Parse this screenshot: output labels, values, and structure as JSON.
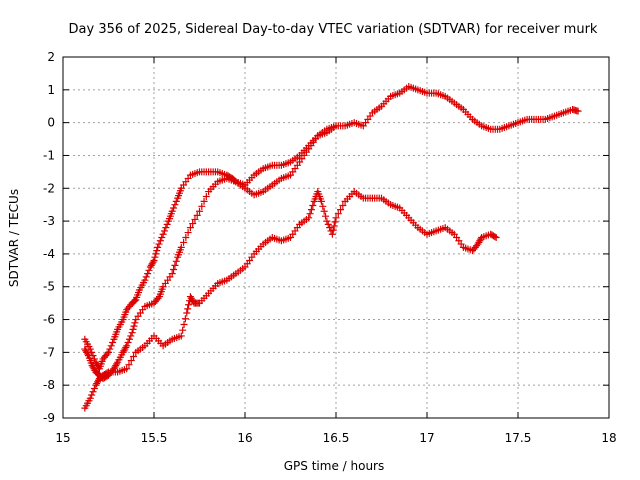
{
  "chart_data": {
    "type": "scatter",
    "title": "Day 356 of 2025, Sidereal Day-to-day VTEC variation (SDTVAR) for receiver murk",
    "xlabel": "GPS time / hours",
    "ylabel": "SDTVAR / TECUs",
    "xlim": [
      15,
      18
    ],
    "ylim": [
      -9,
      2
    ],
    "xticks": [
      "15",
      "15.5",
      "16",
      "16.5",
      "17",
      "17.5",
      "18"
    ],
    "yticks": [
      "2",
      "1",
      "0",
      "-1",
      "-2",
      "-3",
      "-4",
      "-5",
      "-6",
      "-7",
      "-8",
      "-9"
    ],
    "grid": true,
    "marker": "plus",
    "color": "#dd0000",
    "series": [
      {
        "x": [
          15.12,
          15.15,
          15.18,
          15.2,
          15.22,
          15.25,
          15.28,
          15.3,
          15.33,
          15.35,
          15.38,
          15.4,
          15.42,
          15.45,
          15.48,
          15.5,
          15.52,
          15.55,
          15.58,
          15.6,
          15.63,
          15.65,
          15.7,
          15.75,
          15.8,
          15.85,
          15.9,
          15.93,
          15.95,
          16.0,
          16.05,
          16.1,
          16.15,
          16.2,
          16.25,
          16.3,
          16.35,
          16.4,
          16.45,
          16.5,
          16.55,
          16.6,
          16.65,
          16.7,
          16.75,
          16.8,
          16.85,
          16.9,
          16.95,
          17.0,
          17.05,
          17.1,
          17.15,
          17.2,
          17.25,
          17.3,
          17.35,
          17.4,
          17.45,
          17.5,
          17.55,
          17.6,
          17.65,
          17.7,
          17.75,
          17.8,
          17.83
        ],
        "y": [
          -6.6,
          -6.9,
          -7.3,
          -7.5,
          -7.2,
          -7.0,
          -6.6,
          -6.3,
          -6.0,
          -5.7,
          -5.5,
          -5.4,
          -5.1,
          -4.8,
          -4.4,
          -4.2,
          -3.8,
          -3.4,
          -3.0,
          -2.7,
          -2.3,
          -2.0,
          -1.6,
          -1.5,
          -1.5,
          -1.5,
          -1.6,
          -1.7,
          -1.8,
          -1.9,
          -1.6,
          -1.4,
          -1.3,
          -1.3,
          -1.2,
          -1.0,
          -0.7,
          -0.4,
          -0.3,
          -0.1,
          -0.1,
          0.0,
          -0.1,
          0.3,
          0.5,
          0.8,
          0.9,
          1.1,
          1.0,
          0.9,
          0.9,
          0.8,
          0.6,
          0.4,
          0.1,
          -0.1,
          -0.2,
          -0.2,
          -0.1,
          0.0,
          0.1,
          0.1,
          0.1,
          0.2,
          0.3,
          0.4,
          0.35
        ]
      },
      {
        "x": [
          15.12,
          15.14,
          15.16,
          15.18,
          15.2,
          15.22,
          15.25,
          15.28,
          15.3,
          15.33,
          15.35,
          15.38,
          15.4,
          15.45,
          15.5,
          15.53,
          15.55,
          15.6,
          15.63,
          15.65,
          15.7,
          15.75,
          15.8,
          15.85,
          15.9,
          15.95,
          16.0,
          16.05,
          16.1,
          16.15,
          16.2,
          16.25,
          16.3,
          16.35,
          16.4,
          16.45,
          16.5
        ],
        "y": [
          -6.9,
          -7.1,
          -7.4,
          -7.6,
          -7.7,
          -7.8,
          -7.7,
          -7.5,
          -7.3,
          -7.0,
          -6.8,
          -6.4,
          -6.0,
          -5.6,
          -5.5,
          -5.3,
          -5.0,
          -4.6,
          -4.1,
          -3.8,
          -3.2,
          -2.7,
          -2.1,
          -1.8,
          -1.7,
          -1.8,
          -2.0,
          -2.2,
          -2.1,
          -1.9,
          -1.7,
          -1.6,
          -1.2,
          -0.8,
          -0.4,
          -0.2,
          -0.1
        ]
      },
      {
        "x": [
          15.12,
          15.15,
          15.18,
          15.2,
          15.22,
          15.25,
          15.3,
          15.35,
          15.4,
          15.45,
          15.5,
          15.55,
          15.6,
          15.65,
          15.68,
          15.7,
          15.72,
          15.75,
          15.8,
          15.85,
          15.9,
          15.95,
          16.0,
          16.05,
          16.1,
          16.15,
          16.2,
          16.25,
          16.3,
          16.35,
          16.38,
          16.4,
          16.42,
          16.45,
          16.48,
          16.5,
          16.55,
          16.6,
          16.65,
          16.7,
          16.75,
          16.8,
          16.85,
          16.9,
          16.95,
          17.0,
          17.05,
          17.1,
          17.15,
          17.2,
          17.25,
          17.28,
          17.3,
          17.35,
          17.38
        ],
        "y": [
          -8.7,
          -8.4,
          -8.0,
          -7.8,
          -7.7,
          -7.6,
          -7.6,
          -7.5,
          -7.0,
          -6.8,
          -6.5,
          -6.8,
          -6.6,
          -6.5,
          -5.8,
          -5.3,
          -5.5,
          -5.5,
          -5.2,
          -4.9,
          -4.8,
          -4.6,
          -4.4,
          -4.0,
          -3.7,
          -3.5,
          -3.6,
          -3.5,
          -3.1,
          -2.9,
          -2.4,
          -2.1,
          -2.4,
          -3.0,
          -3.4,
          -2.9,
          -2.4,
          -2.1,
          -2.3,
          -2.3,
          -2.3,
          -2.5,
          -2.6,
          -2.9,
          -3.2,
          -3.4,
          -3.3,
          -3.2,
          -3.4,
          -3.8,
          -3.9,
          -3.7,
          -3.5,
          -3.4,
          -3.5
        ]
      }
    ]
  }
}
